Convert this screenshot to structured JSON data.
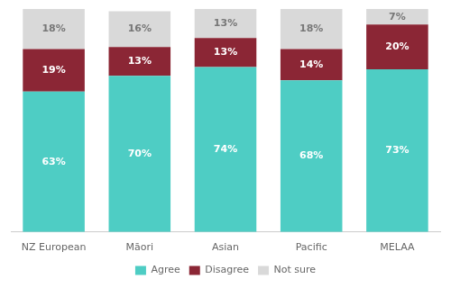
{
  "chart_data": {
    "type": "bar",
    "stacked": true,
    "categories": [
      "NZ European",
      "Māori",
      "Asian",
      "Pacific",
      "MELAA"
    ],
    "series": [
      {
        "name": "Agree",
        "color": "#4ecdc4",
        "values": [
          63,
          70,
          74,
          68,
          73
        ],
        "value_labels": [
          "63%",
          "70%",
          "74%",
          "68%",
          "73%"
        ]
      },
      {
        "name": "Disagree",
        "color": "#8b2635",
        "values": [
          19,
          13,
          13,
          14,
          20
        ],
        "value_labels": [
          "19%",
          "13%",
          "13%",
          "14%",
          "20%"
        ]
      },
      {
        "name": "Not sure",
        "color": "#d9d9d9",
        "values": [
          18,
          16,
          13,
          18,
          7
        ],
        "value_labels": [
          "18%",
          "16%",
          "13%",
          "18%",
          "7%"
        ]
      }
    ],
    "ylim": [
      0,
      100
    ],
    "data_labels": true,
    "tick_labels": "x",
    "grid": false,
    "legend": "bottom"
  }
}
